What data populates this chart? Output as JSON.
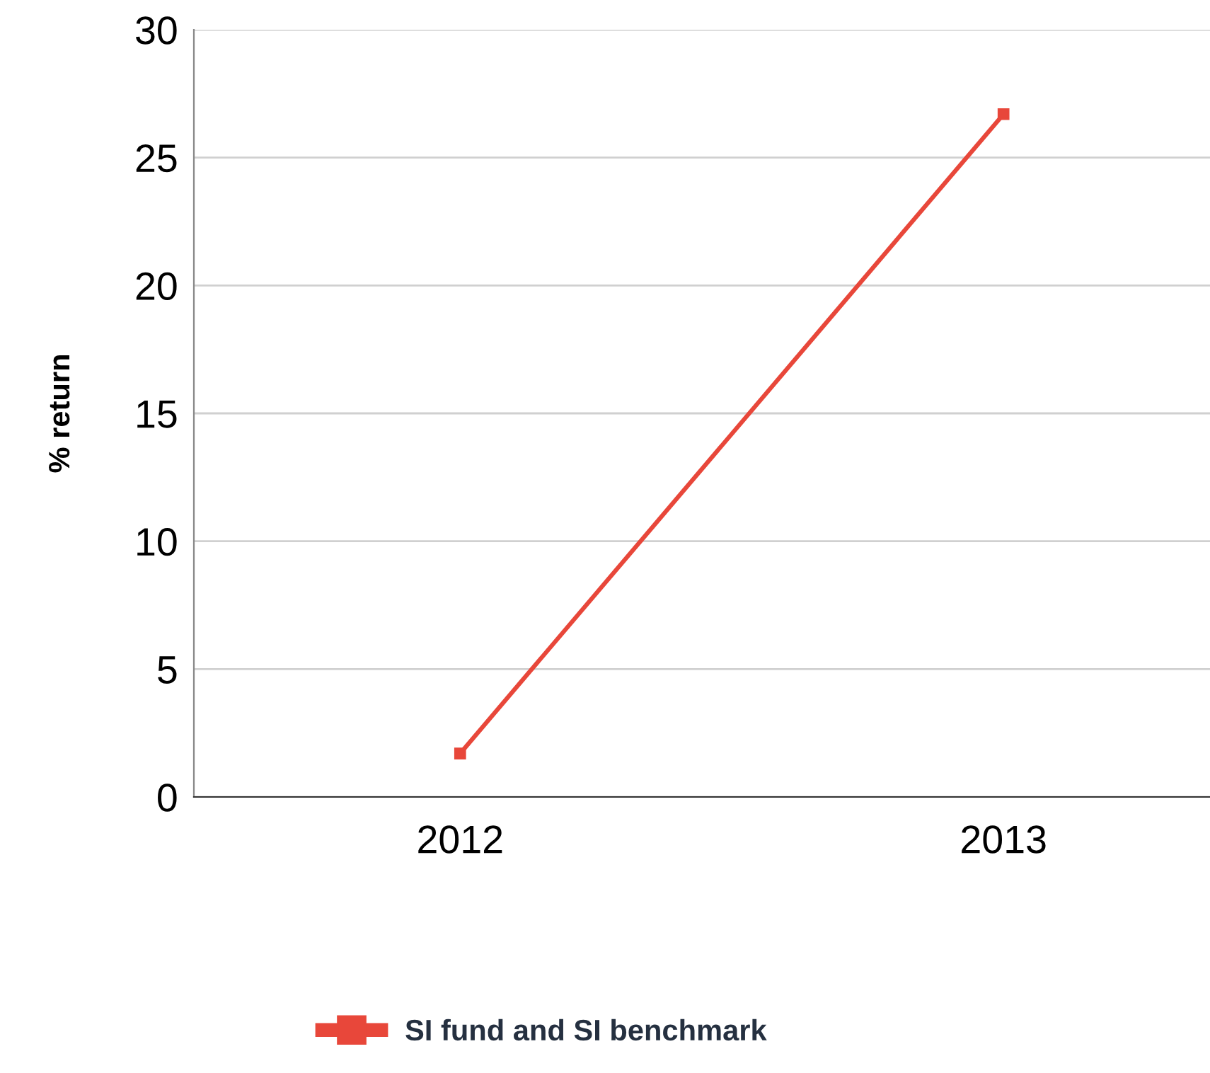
{
  "chart_data": {
    "type": "line",
    "ylabel": "% return",
    "categories": [
      "2012",
      "2013"
    ],
    "series": [
      {
        "name": "SI fund and SI benchmark",
        "color": "#e8473a",
        "values": [
          1.7,
          26.7
        ]
      }
    ],
    "ylim": [
      0,
      30
    ],
    "yticks": [
      0,
      5,
      10,
      15,
      20,
      25,
      30
    ],
    "grid": "y",
    "legend": "bottom",
    "marker": "square",
    "line_style": "solid"
  }
}
